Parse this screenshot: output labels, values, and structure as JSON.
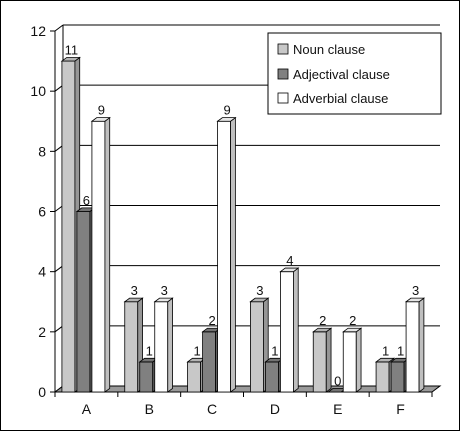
{
  "chart_data": {
    "type": "bar",
    "categories": [
      "A",
      "B",
      "C",
      "D",
      "E",
      "F"
    ],
    "series": [
      {
        "name": "Noun clause",
        "values": [
          11,
          3,
          1,
          3,
          2,
          1
        ],
        "color": "#c8c8c8"
      },
      {
        "name": "Adjectival clause",
        "values": [
          6,
          1,
          2,
          1,
          0,
          1
        ],
        "color": "#808080"
      },
      {
        "name": "Adverbial clause",
        "values": [
          9,
          3,
          9,
          4,
          2,
          3
        ],
        "color": "#ffffff"
      }
    ],
    "yticks": [
      "0",
      "2",
      "4",
      "6",
      "8",
      "10",
      "12"
    ],
    "ylim": [
      0,
      12
    ],
    "grid": true,
    "legend_position": "top-right",
    "style": "3d-bar"
  }
}
